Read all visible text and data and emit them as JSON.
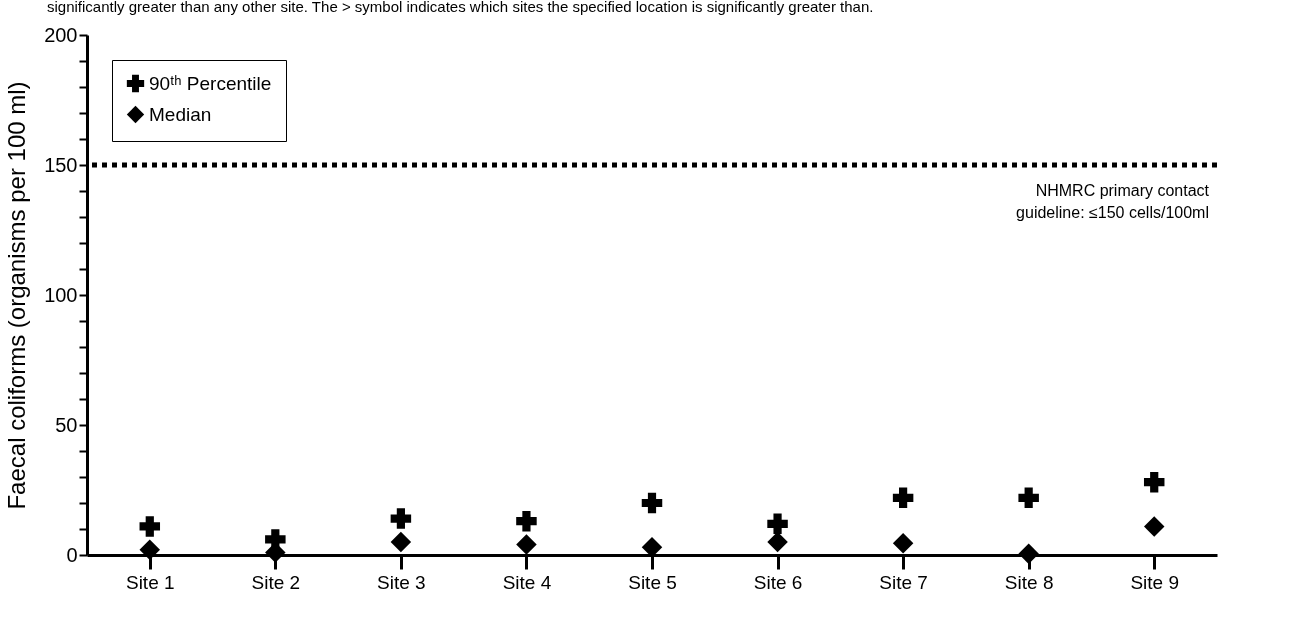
{
  "chart_data": {
    "type": "scatter",
    "ylabel": "Faecal coliforms (organisms per 100 ml)",
    "annotations": [
      "significantly greater than any other site. The > symbol indicates which sites the specified location is significantly greater than."
    ],
    "categories": [
      "Site 1",
      "Site 2",
      "Site 3",
      "Site 4",
      "Site 5",
      "Site 6",
      "Site 7",
      "Site 8",
      "Site 9"
    ],
    "series": [
      {
        "name": "90ᵗʰ Percentile",
        "color": "#000000",
        "marker": "cross",
        "values": [
          11,
          6,
          14,
          13,
          20,
          12,
          22,
          22,
          28
        ]
      },
      {
        "name": "Median",
        "color": "#000000",
        "marker": "diamond",
        "values": [
          2,
          1,
          5,
          4,
          3,
          5,
          4.5,
          0.5,
          11
        ]
      }
    ],
    "ylim": [
      0,
      200
    ],
    "yticks": [
      0,
      {
        "value": 10,
        "label": null
      },
      {
        "value": 20,
        "label": null
      },
      {
        "value": 30,
        "label": null
      },
      {
        "value": 40,
        "label": null
      },
      50,
      {
        "value": 60,
        "label": null
      },
      {
        "value": 70,
        "label": null
      },
      {
        "value": 80,
        "label": null
      },
      {
        "value": 90,
        "label": null
      },
      100,
      {
        "value": 110,
        "label": null
      },
      {
        "value": 120,
        "label": null
      },
      {
        "value": 130,
        "label": null
      },
      {
        "value": 140,
        "label": null
      },
      150,
      {
        "value": 160,
        "label": null
      },
      {
        "value": 170,
        "label": null
      },
      {
        "value": 180,
        "label": null
      },
      {
        "value": 190,
        "label": null
      },
      200
    ],
    "ref_lines": [
      {
        "axis": "y",
        "value": 150,
        "label": "NHMRC primary contact\nguideline: ≤150 cells/100ml",
        "color": "#000000",
        "line_style": "dotted"
      }
    ],
    "legend": "top left",
    "grid": false
  }
}
